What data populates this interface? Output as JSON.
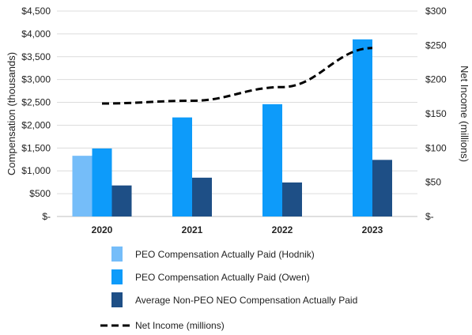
{
  "chart_data": {
    "type": "bar",
    "categories": [
      "2020",
      "2021",
      "2022",
      "2023"
    ],
    "series": [
      {
        "name": "PEO Compensation Actually Paid (Hodnik)",
        "axis": "left",
        "type": "bar",
        "color": "#75bdf9",
        "values": [
          1330,
          null,
          null,
          null
        ]
      },
      {
        "name": "PEO Compensation Actually Paid (Owen)",
        "axis": "left",
        "type": "bar",
        "color": "#0d9bfa",
        "values": [
          1490,
          2170,
          2460,
          3880
        ]
      },
      {
        "name": "Average Non-PEO NEO Compensation Actually Paid",
        "axis": "left",
        "type": "bar",
        "color": "#1e4f86",
        "values": [
          680,
          850,
          745,
          1240
        ]
      },
      {
        "name": "Net Income (millions)",
        "axis": "right",
        "type": "line",
        "style": "dashed",
        "color": "#000000",
        "values": [
          165,
          169,
          189,
          246
        ]
      }
    ],
    "ylabel": "Compensation (thousands)",
    "y2label": "Net Income (millions)",
    "ylim": [
      0,
      4500
    ],
    "y2lim": [
      0,
      300
    ],
    "yticks": [
      "$-",
      "$500",
      "$1,000",
      "$1,500",
      "$2,000",
      "$2,500",
      "$3,000",
      "$3,500",
      "$4,000",
      "$4,500"
    ],
    "y2ticks": [
      "$-",
      "$50",
      "$100",
      "$150",
      "$200",
      "$250",
      "$300"
    ],
    "grid": true,
    "legend_position": "bottom"
  }
}
